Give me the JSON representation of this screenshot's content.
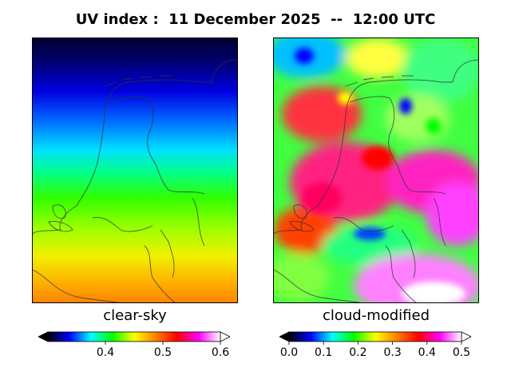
{
  "title": "UV index :  11 December 2025  --  12:00 UTC",
  "panels": {
    "left": {
      "label": "clear-sky",
      "colorbar": {
        "min": 0.3,
        "max": 0.6,
        "ticks": [
          "0.4",
          "0.5",
          "0.6"
        ],
        "tick_values": [
          0.4,
          0.5,
          0.6
        ],
        "extend": "both"
      }
    },
    "right": {
      "label": "cloud-modified",
      "colorbar": {
        "min": 0.0,
        "max": 0.5,
        "ticks": [
          "0.0",
          "0.1",
          "0.2",
          "0.3",
          "0.4",
          "0.5"
        ],
        "tick_values": [
          0.0,
          0.1,
          0.2,
          0.3,
          0.4,
          0.5
        ],
        "extend": "both"
      }
    }
  },
  "colormap": [
    "#000000",
    "#0000ff",
    "#00ffff",
    "#00ff00",
    "#ffff00",
    "#ff8000",
    "#ff0000",
    "#ff00ff",
    "#ffffff"
  ],
  "map_region": "Netherlands"
}
